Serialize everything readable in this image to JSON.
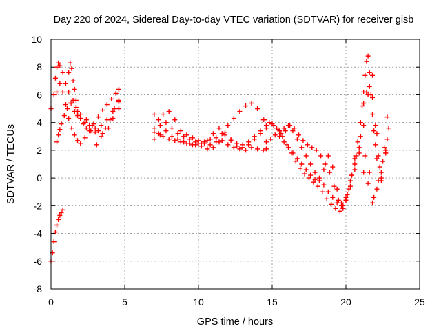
{
  "chart_data": {
    "type": "scatter",
    "title": "Day 220 of 2024, Sidereal Day-to-day VTEC variation (SDTVAR) for receiver gisb",
    "xlabel": "GPS time / hours",
    "ylabel": "SDTVAR / TECUs",
    "xlim": [
      0,
      25
    ],
    "ylim": [
      -8,
      10
    ],
    "xticks": [
      0,
      5,
      10,
      15,
      20,
      25
    ],
    "yticks": [
      -8,
      -6,
      -4,
      -2,
      0,
      2,
      4,
      6,
      8,
      10
    ],
    "grid": true,
    "marker": "+",
    "color": "#ff0000",
    "series": [
      {
        "name": "s1",
        "x": [
          0.0,
          0.1,
          0.2,
          0.3,
          0.4,
          0.5,
          0.6,
          0.7,
          0.8
        ],
        "y": [
          -6.0,
          -5.4,
          -4.6,
          -3.9,
          -3.4,
          -3.0,
          -2.7,
          -2.5,
          -2.3
        ]
      },
      {
        "name": "s2",
        "x": [
          0.0,
          0.2,
          0.4,
          0.6,
          0.8,
          1.0,
          1.2,
          1.4,
          1.6,
          1.8,
          2.0,
          2.3,
          2.6,
          2.9,
          3.2,
          3.5,
          3.8,
          4.1,
          4.4,
          4.6
        ],
        "y": [
          5.0,
          6.0,
          6.2,
          6.8,
          6.2,
          5.3,
          4.3,
          3.6,
          3.1,
          2.7,
          2.5,
          2.9,
          3.4,
          3.9,
          4.4,
          4.9,
          5.3,
          5.7,
          6.1,
          6.4
        ]
      },
      {
        "name": "s3",
        "x": [
          0.3,
          0.4,
          0.5,
          0.6,
          0.8,
          1.0,
          1.2,
          1.4,
          1.6,
          1.8,
          2.0,
          2.3,
          2.6,
          3.0,
          3.4,
          3.8,
          4.2,
          4.6
        ],
        "y": [
          7.2,
          8.0,
          8.3,
          8.1,
          7.6,
          6.8,
          6.2,
          5.4,
          4.8,
          4.5,
          4.3,
          4.0,
          3.8,
          3.6,
          3.8,
          4.2,
          4.8,
          5.5
        ]
      },
      {
        "name": "s4",
        "x": [
          0.4,
          0.5,
          0.6,
          0.7,
          0.9,
          1.1,
          1.3,
          1.5,
          1.7,
          2.0,
          2.4,
          2.8,
          3.2,
          3.5,
          3.9,
          4.2,
          4.6
        ],
        "y": [
          2.6,
          3.1,
          3.5,
          3.9,
          4.5,
          5.0,
          5.4,
          5.6,
          5.1,
          4.6,
          4.2,
          3.8,
          3.4,
          3.2,
          3.6,
          4.3,
          5.0
        ]
      },
      {
        "name": "s5",
        "x": [
          1.2,
          1.3,
          1.4,
          1.5,
          1.6,
          1.7,
          1.8,
          2.0,
          2.2,
          2.4,
          2.7,
          3.0
        ],
        "y": [
          7.6,
          8.3,
          7.9,
          7.0,
          6.4,
          5.6,
          4.8,
          4.3,
          3.9,
          3.6,
          3.4,
          3.3
        ]
      },
      {
        "name": "s6",
        "x": [
          3.1,
          3.4,
          3.7,
          4.0,
          4.3,
          4.6
        ],
        "y": [
          2.4,
          3.0,
          3.6,
          4.2,
          5.0,
          5.6
        ]
      },
      {
        "name": "s7",
        "x": [
          7.0,
          7.3,
          7.6,
          8.0,
          8.4,
          8.8,
          9.2,
          9.6,
          10.0,
          10.4,
          10.8,
          11.2,
          11.6,
          12.0,
          12.4,
          12.8,
          13.2,
          13.6,
          14.0,
          14.4,
          14.6
        ],
        "y": [
          3.3,
          3.2,
          3.0,
          2.8,
          2.7,
          2.6,
          2.5,
          2.4,
          2.5,
          2.6,
          2.8,
          2.9,
          2.7,
          2.4,
          2.2,
          2.1,
          2.0,
          2.2,
          2.1,
          2.0,
          2.1
        ]
      },
      {
        "name": "s8",
        "x": [
          7.0,
          7.3,
          7.6,
          8.0,
          8.4,
          8.8,
          9.2,
          9.6,
          10.0,
          10.4,
          10.8,
          11.2,
          11.6,
          12.0,
          12.4,
          12.8,
          13.2,
          13.6,
          14.0,
          14.4,
          14.6
        ],
        "y": [
          4.6,
          4.2,
          4.6,
          4.8,
          4.2,
          3.4,
          3.1,
          2.9,
          2.7,
          2.5,
          2.4,
          2.6,
          3.2,
          3.8,
          4.3,
          4.8,
          5.2,
          5.4,
          5.0,
          4.2,
          3.8
        ]
      },
      {
        "name": "s9",
        "x": [
          7.0,
          7.4,
          7.8,
          8.2,
          8.6,
          9.0,
          9.4,
          9.8,
          10.2,
          10.6,
          11.0,
          11.4,
          11.8,
          12.2,
          12.6,
          13.0,
          13.4,
          13.8,
          14.2,
          14.6
        ],
        "y": [
          3.6,
          3.8,
          4.0,
          3.6,
          3.2,
          3.0,
          2.8,
          2.6,
          2.5,
          2.7,
          3.2,
          3.6,
          3.3,
          2.8,
          2.5,
          2.4,
          2.6,
          3.0,
          3.4,
          3.6
        ]
      },
      {
        "name": "s10",
        "x": [
          7.0,
          7.4,
          7.8,
          8.2,
          8.6,
          9.0,
          9.4,
          9.8,
          10.2,
          10.6,
          11.0,
          11.4,
          11.8,
          12.2,
          12.6,
          13.0,
          13.4,
          13.8,
          14.2
        ],
        "y": [
          2.8,
          3.1,
          3.4,
          3.0,
          2.8,
          2.6,
          2.5,
          2.4,
          2.3,
          2.1,
          2.2,
          2.6,
          3.1,
          2.7,
          2.3,
          2.2,
          2.4,
          2.8,
          3.2
        ]
      },
      {
        "name": "s11",
        "x": [
          14.5,
          14.8,
          15.1,
          15.4,
          15.7,
          16.0,
          16.3,
          16.6,
          16.9,
          17.2,
          17.5,
          17.8,
          18.1,
          18.4,
          18.7,
          19.0,
          19.3,
          19.6,
          19.8,
          20.0,
          20.2,
          20.4,
          20.6,
          20.8,
          21.0,
          21.2,
          21.4,
          21.6,
          21.8,
          22.0,
          22.2,
          22.4,
          22.6,
          22.8
        ],
        "y": [
          4.2,
          4.0,
          3.8,
          3.5,
          3.0,
          2.4,
          1.8,
          1.2,
          0.7,
          0.3,
          0.0,
          -0.3,
          -0.6,
          -1.0,
          -1.5,
          -1.9,
          -2.2,
          -2.4,
          -2.2,
          -1.6,
          -0.8,
          0.2,
          1.4,
          2.6,
          4.0,
          5.4,
          6.2,
          6.6,
          5.8,
          3.8,
          1.6,
          0.0,
          2.2,
          4.4
        ]
      },
      {
        "name": "s12",
        "x": [
          14.6,
          14.9,
          15.2,
          15.5,
          15.8,
          16.1,
          16.4,
          16.7,
          17.0,
          17.3,
          17.6,
          17.9,
          18.2,
          18.5,
          18.8,
          19.1,
          19.4,
          19.7,
          20.0,
          20.3,
          20.6,
          20.9,
          21.2,
          21.5,
          21.8,
          22.1,
          22.4,
          22.7,
          22.9
        ],
        "y": [
          2.6,
          2.8,
          3.1,
          3.4,
          3.6,
          3.8,
          3.4,
          2.8,
          2.2,
          1.6,
          1.0,
          0.4,
          0.0,
          -0.5,
          -1.0,
          -1.4,
          -1.8,
          -2.0,
          -1.4,
          -0.2,
          1.0,
          2.2,
          3.8,
          6.0,
          7.4,
          3.2,
          -0.2,
          1.8,
          3.6
        ]
      },
      {
        "name": "s13",
        "x": [
          15.0,
          15.3,
          15.6,
          15.9,
          16.2,
          16.5,
          16.8,
          17.1,
          17.4,
          17.7,
          18.0,
          18.3,
          18.6,
          18.9,
          19.2,
          19.5,
          19.8,
          20.1,
          20.4,
          20.7,
          21.0,
          21.3,
          21.6,
          21.9,
          22.2,
          22.5,
          22.8
        ],
        "y": [
          3.9,
          3.6,
          3.2,
          3.4,
          3.8,
          3.6,
          3.1,
          2.7,
          2.4,
          2.2,
          2.0,
          1.6,
          1.0,
          0.4,
          -0.6,
          -1.6,
          -2.0,
          -1.2,
          0.2,
          1.6,
          3.0,
          1.6,
          0.4,
          -1.4,
          -0.2,
          1.2,
          2.8
        ]
      },
      {
        "name": "s14",
        "x": [
          15.5,
          15.8,
          16.1,
          16.4,
          16.7,
          17.0,
          17.3,
          17.6,
          17.9,
          18.2,
          18.5,
          18.8,
          19.1,
          19.4,
          19.7,
          20.0,
          20.3,
          20.6,
          20.9,
          21.2,
          21.5,
          21.8,
          22.1,
          22.4,
          22.7
        ],
        "y": [
          3.0,
          2.6,
          2.2,
          1.8,
          1.4,
          1.0,
          0.6,
          0.2,
          -0.1,
          -0.2,
          0.6,
          1.6,
          0.8,
          -0.8,
          -1.8,
          -1.6,
          -0.6,
          0.6,
          1.8,
          0.4,
          -0.4,
          -1.8,
          -0.8,
          0.4,
          1.8
        ]
      },
      {
        "name": "s15",
        "x": [
          21.1,
          21.2,
          21.3,
          21.4,
          21.5,
          21.6,
          21.7,
          21.8,
          21.9,
          22.0,
          22.1,
          22.3,
          22.5,
          22.7
        ],
        "y": [
          5.2,
          6.2,
          7.4,
          8.4,
          8.8,
          7.6,
          6.0,
          4.6,
          3.4,
          2.4,
          1.4,
          0.8,
          1.2,
          2.0
        ]
      }
    ]
  }
}
